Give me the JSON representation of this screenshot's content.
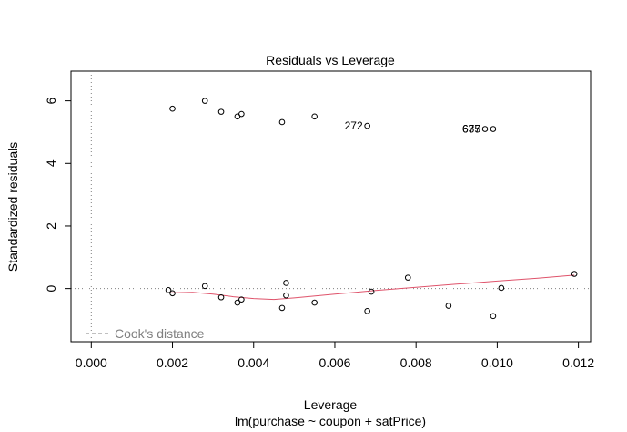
{
  "chart_data": {
    "type": "scatter",
    "title": "Residuals vs Leverage",
    "xlabel": "Leverage",
    "ylabel": "Standardized residuals",
    "subtitle": "lm(purchase ~ coupon + satPrice)",
    "xlim": [
      -0.0005,
      0.0123
    ],
    "ylim": [
      -1.7,
      6.95
    ],
    "x_ticks": [
      0.0,
      0.002,
      0.004,
      0.006,
      0.008,
      0.01,
      0.012
    ],
    "x_tick_labels": [
      "0.000",
      "0.002",
      "0.004",
      "0.006",
      "0.008",
      "0.010",
      "0.012"
    ],
    "y_ticks": [
      0,
      2,
      4,
      6
    ],
    "y_tick_labels": [
      "0",
      "2",
      "4",
      "6"
    ],
    "grid": false,
    "legend": {
      "position": "bottom-left",
      "entry": "Cook's distance",
      "style": "dashed",
      "color": "#808080"
    },
    "reference_lines": [
      {
        "axis": "y",
        "value": 0,
        "style": "dotted",
        "color": "#808080"
      },
      {
        "axis": "x",
        "value": 0,
        "style": "dotted",
        "color": "#808080"
      }
    ],
    "points": [
      {
        "x": 0.0019,
        "y": -0.05
      },
      {
        "x": 0.002,
        "y": -0.15
      },
      {
        "x": 0.002,
        "y": 5.75
      },
      {
        "x": 0.0028,
        "y": 6.0
      },
      {
        "x": 0.0028,
        "y": 0.08
      },
      {
        "x": 0.0032,
        "y": 5.65
      },
      {
        "x": 0.0032,
        "y": -0.28
      },
      {
        "x": 0.0036,
        "y": 5.5
      },
      {
        "x": 0.0037,
        "y": 5.58
      },
      {
        "x": 0.0036,
        "y": -0.45
      },
      {
        "x": 0.0037,
        "y": -0.35
      },
      {
        "x": 0.0047,
        "y": 5.32
      },
      {
        "x": 0.0047,
        "y": -0.62
      },
      {
        "x": 0.0048,
        "y": 0.18
      },
      {
        "x": 0.0048,
        "y": -0.22
      },
      {
        "x": 0.0055,
        "y": 5.5
      },
      {
        "x": 0.0055,
        "y": -0.45
      },
      {
        "x": 0.0068,
        "y": 5.2
      },
      {
        "x": 0.0068,
        "y": -0.72
      },
      {
        "x": 0.0069,
        "y": -0.1
      },
      {
        "x": 0.0078,
        "y": 0.35
      },
      {
        "x": 0.0088,
        "y": -0.55
      },
      {
        "x": 0.0097,
        "y": 5.1
      },
      {
        "x": 0.0099,
        "y": 5.1
      },
      {
        "x": 0.0099,
        "y": -0.88
      },
      {
        "x": 0.0101,
        "y": 0.02
      },
      {
        "x": 0.0119,
        "y": 0.47
      }
    ],
    "point_labels": [
      {
        "x": 0.0068,
        "y": 5.2,
        "text": "272"
      },
      {
        "x": 0.0097,
        "y": 5.1,
        "text": "677"
      },
      {
        "x": 0.0097,
        "y": 5.1,
        "text": "635"
      }
    ],
    "smooth_line": {
      "color": "#DF536B",
      "points": [
        {
          "x": 0.0019,
          "y": -0.14
        },
        {
          "x": 0.0025,
          "y": -0.12
        },
        {
          "x": 0.003,
          "y": -0.18
        },
        {
          "x": 0.0035,
          "y": -0.26
        },
        {
          "x": 0.004,
          "y": -0.32
        },
        {
          "x": 0.0045,
          "y": -0.35
        },
        {
          "x": 0.005,
          "y": -0.3
        },
        {
          "x": 0.006,
          "y": -0.18
        },
        {
          "x": 0.007,
          "y": -0.06
        },
        {
          "x": 0.008,
          "y": 0.04
        },
        {
          "x": 0.009,
          "y": 0.14
        },
        {
          "x": 0.01,
          "y": 0.24
        },
        {
          "x": 0.011,
          "y": 0.33
        },
        {
          "x": 0.0119,
          "y": 0.43
        }
      ]
    }
  }
}
